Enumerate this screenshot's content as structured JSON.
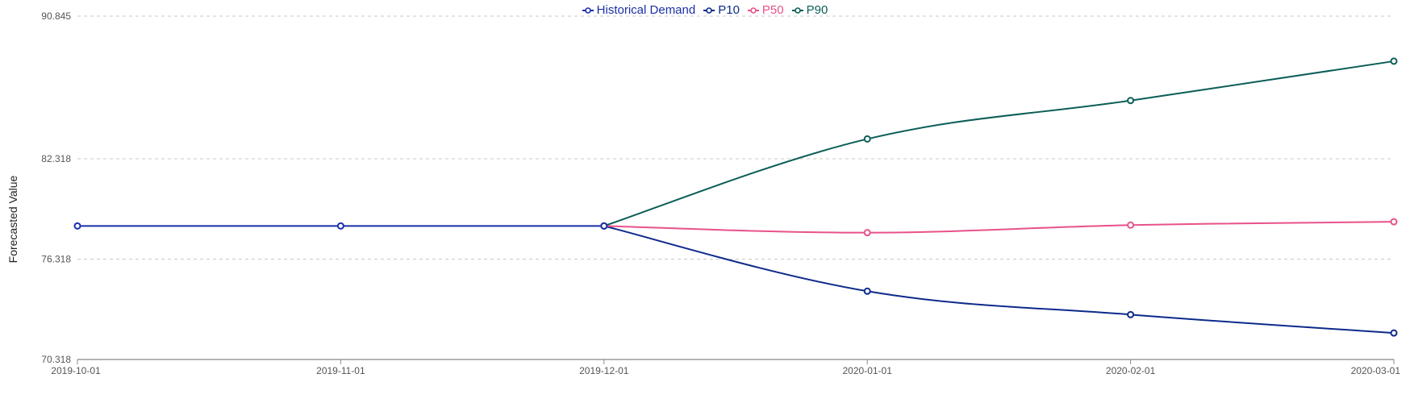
{
  "chart_data": {
    "type": "line",
    "ylabel": "Forecasted Value",
    "ylim": [
      70.318,
      90.845
    ],
    "y_ticks": [
      "70.318",
      "76.318",
      "82.318",
      "90.845"
    ],
    "y_tick_values": [
      70.318,
      76.318,
      82.318,
      90.845
    ],
    "x": [
      "2019-10-01",
      "2019-11-01",
      "2019-12-01",
      "2020-01-01",
      "2020-02-01",
      "2020-03-01"
    ],
    "grid": "horizontal dashed",
    "legend_position": "top-center",
    "series": [
      {
        "name": "Historical Demand",
        "color": "#1a2fa8",
        "values": [
          78.3,
          78.3,
          78.3,
          null,
          null,
          null
        ]
      },
      {
        "name": "P10",
        "color": "#0d2a8a",
        "values": [
          null,
          null,
          78.3,
          74.4,
          73.0,
          71.9
        ]
      },
      {
        "name": "P50",
        "color": "#e8528a",
        "values": [
          null,
          null,
          78.3,
          77.9,
          78.35,
          78.55
        ]
      },
      {
        "name": "P90",
        "color": "#0b5e57",
        "values": [
          null,
          null,
          78.3,
          83.5,
          85.8,
          88.15
        ]
      }
    ]
  }
}
